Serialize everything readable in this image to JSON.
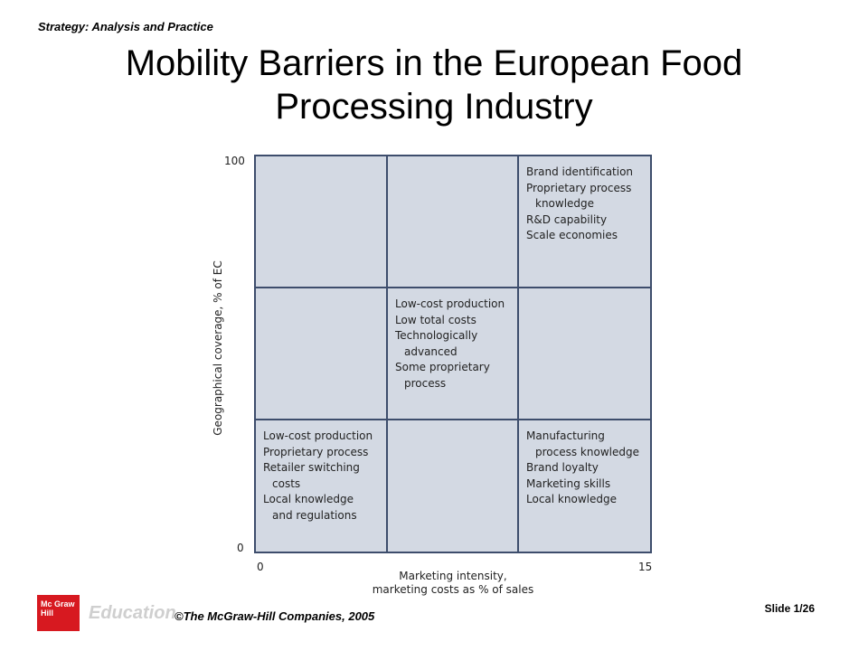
{
  "header": {
    "label": "Strategy: Analysis and Practice",
    "title_line1": "Mobility Barriers in the European Food",
    "title_line2": "Processing Industry"
  },
  "diagram": {
    "y_axis": {
      "label": "Geographical coverage, % of EC",
      "min_label": "0",
      "max_label": "100"
    },
    "x_axis": {
      "label_line1": "Marketing intensity,",
      "label_line2": "marketing costs as % of sales",
      "min_label": "0",
      "max_label": "15"
    },
    "cells": {
      "top_right": [
        {
          "text": "Brand identification"
        },
        {
          "text": "Proprietary process"
        },
        {
          "text": "knowledge",
          "indent": true
        },
        {
          "text": "R&D capability"
        },
        {
          "text": "Scale economies"
        }
      ],
      "middle_center": [
        {
          "text": "Low-cost production"
        },
        {
          "text": "Low total costs"
        },
        {
          "text": "Technologically"
        },
        {
          "text": "advanced",
          "indent": true
        },
        {
          "text": "Some proprietary"
        },
        {
          "text": "process",
          "indent": true
        }
      ],
      "bottom_left": [
        {
          "text": "Low-cost production"
        },
        {
          "text": "Proprietary process"
        },
        {
          "text": "Retailer switching"
        },
        {
          "text": "costs",
          "indent": true
        },
        {
          "text": "Local knowledge"
        },
        {
          "text": "and regulations",
          "indent": true
        }
      ],
      "bottom_right": [
        {
          "text": "Manufacturing"
        },
        {
          "text": "process knowledge",
          "indent": true
        },
        {
          "text": "Brand loyalty"
        },
        {
          "text": "Marketing skills"
        },
        {
          "text": "Local knowledge"
        }
      ]
    }
  },
  "footer": {
    "logo_text": "Mc Graw Hill",
    "logo_word": "Education",
    "copyright": "©The McGraw-Hill Companies, 2005",
    "slide_number": "Slide 1/26"
  },
  "colors": {
    "cell_fill": "#d3d9e3",
    "grid_line": "#3d4d6c",
    "logo_red": "#d71920"
  }
}
